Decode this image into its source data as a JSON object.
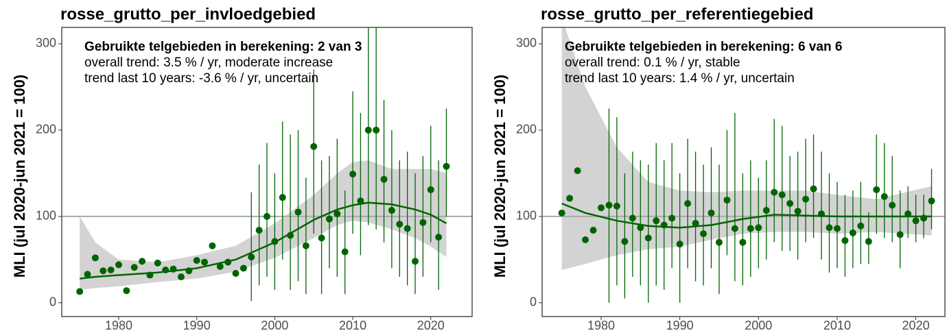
{
  "chart_data": [
    {
      "type": "scatter",
      "title": "rosse_grutto_per_invloedgebied",
      "annotations": [
        "Gebruikte telgebieden in berekening: 2 van 3",
        "overall trend: 3.5 % / yr, moderate increase",
        "trend last 10 years: -3.6 % / yr, uncertain"
      ],
      "y_label": "MLI (jul 2020-jun 2021 = 100)",
      "color": "#006400",
      "band_color": "#d3d3d3",
      "hline": 100,
      "xlim": [
        1972.7,
        2025.3
      ],
      "ylim": [
        -16,
        319
      ],
      "xticks": [
        1980,
        1990,
        2000,
        2010,
        2020
      ],
      "yticks": [
        0,
        100,
        200,
        300
      ],
      "x": [
        1975,
        1976,
        1977,
        1978,
        1979,
        1980,
        1981,
        1982,
        1983,
        1984,
        1985,
        1986,
        1987,
        1988,
        1989,
        1990,
        1991,
        1992,
        1993,
        1994,
        1995,
        1996,
        1997,
        1998,
        1999,
        2000,
        2001,
        2002,
        2003,
        2004,
        2005,
        2006,
        2007,
        2008,
        2009,
        2010,
        2011,
        2012,
        2013,
        2014,
        2015,
        2016,
        2017,
        2018,
        2019,
        2020,
        2021,
        2022
      ],
      "values": [
        13,
        33,
        52,
        37,
        38,
        44,
        14,
        41,
        48,
        32,
        46,
        38,
        39,
        30,
        37,
        49,
        47,
        66,
        42,
        47,
        34,
        40,
        53,
        84,
        100,
        71,
        122,
        78,
        105,
        66,
        181,
        75,
        97,
        103,
        59,
        149,
        118,
        200,
        200,
        143,
        107,
        91,
        86,
        48,
        93,
        131,
        76,
        158
      ],
      "lower": [
        null,
        null,
        null,
        null,
        null,
        null,
        null,
        null,
        null,
        null,
        null,
        null,
        null,
        null,
        null,
        null,
        null,
        null,
        null,
        null,
        null,
        null,
        2,
        20,
        30,
        15,
        50,
        15,
        25,
        10,
        80,
        10,
        40,
        30,
        10,
        80,
        55,
        90,
        85,
        70,
        40,
        30,
        20,
        10,
        30,
        70,
        15,
        100
      ],
      "upper": [
        null,
        null,
        null,
        null,
        null,
        null,
        null,
        null,
        null,
        null,
        null,
        null,
        null,
        null,
        null,
        null,
        null,
        null,
        null,
        null,
        null,
        null,
        128,
        160,
        185,
        150,
        210,
        195,
        200,
        145,
        270,
        165,
        170,
        190,
        130,
        245,
        220,
        320,
        320,
        235,
        200,
        165,
        175,
        150,
        170,
        205,
        165,
        225
      ],
      "fit_x": [
        1975,
        1977,
        1980,
        1985,
        1990,
        1995,
        2000,
        2005,
        2008,
        2010,
        2012,
        2015,
        2018,
        2020,
        2022
      ],
      "fit_values": [
        28,
        30,
        32,
        35,
        40,
        50,
        70,
        96,
        108,
        113,
        116,
        114,
        108,
        102,
        92
      ],
      "fit_lower": [
        15,
        17,
        19,
        24,
        28,
        36,
        52,
        75,
        90,
        95,
        93,
        85,
        75,
        65,
        53
      ],
      "fit_upper": [
        100,
        70,
        50,
        47,
        55,
        66,
        92,
        125,
        150,
        163,
        165,
        155,
        155,
        155,
        150
      ]
    },
    {
      "type": "scatter",
      "title": "rosse_grutto_per_referentiegebied",
      "annotations": [
        "Gebruikte telgebieden in berekening: 6 van 6",
        "overall trend: 0.1 % / yr, stable",
        "trend last 10 years: 1.4 % / yr, uncertain"
      ],
      "y_label": "MLI (jul 2020-jun 2021 = 100)",
      "color": "#006400",
      "band_color": "#d3d3d3",
      "hline": 100,
      "xlim": [
        1972.5,
        2023.7
      ],
      "ylim": [
        -16,
        319
      ],
      "xticks": [
        1980,
        1990,
        2000,
        2010,
        2020
      ],
      "yticks": [
        0,
        100,
        200,
        300
      ],
      "x": [
        1975,
        1976,
        1977,
        1978,
        1979,
        1980,
        1981,
        1982,
        1983,
        1984,
        1985,
        1986,
        1987,
        1988,
        1989,
        1990,
        1991,
        1992,
        1993,
        1994,
        1995,
        1996,
        1997,
        1998,
        1999,
        2000,
        2001,
        2002,
        2003,
        2004,
        2005,
        2006,
        2007,
        2008,
        2009,
        2010,
        2011,
        2012,
        2013,
        2014,
        2015,
        2016,
        2017,
        2018,
        2019,
        2020,
        2021,
        2022
      ],
      "values": [
        104,
        121,
        153,
        73,
        84,
        110,
        113,
        112,
        71,
        98,
        87,
        75,
        95,
        90,
        98,
        68,
        115,
        92,
        80,
        104,
        70,
        119,
        86,
        70,
        86,
        87,
        107,
        128,
        125,
        115,
        106,
        120,
        132,
        103,
        87,
        86,
        72,
        81,
        89,
        71,
        131,
        123,
        113,
        79,
        103,
        95,
        98,
        118
      ],
      "lower": [
        null,
        null,
        null,
        null,
        null,
        null,
        0,
        20,
        5,
        30,
        20,
        0,
        20,
        15,
        40,
        0,
        40,
        25,
        20,
        40,
        10,
        55,
        25,
        20,
        30,
        40,
        50,
        70,
        60,
        60,
        50,
        70,
        75,
        50,
        35,
        40,
        30,
        40,
        45,
        45,
        80,
        75,
        70,
        40,
        75,
        70,
        75,
        85
      ],
      "upper": [
        null,
        null,
        null,
        null,
        null,
        null,
        225,
        215,
        150,
        175,
        165,
        160,
        185,
        165,
        185,
        150,
        190,
        175,
        160,
        180,
        160,
        200,
        220,
        150,
        165,
        145,
        165,
        213,
        205,
        170,
        175,
        190,
        195,
        175,
        150,
        140,
        125,
        130,
        140,
        105,
        195,
        185,
        170,
        130,
        135,
        125,
        125,
        155
      ],
      "fit_x": [
        1975,
        1978,
        1982,
        1986,
        1990,
        1994,
        1998,
        2002,
        2006,
        2010,
        2015,
        2022
      ],
      "fit_values": [
        115,
        104,
        95,
        89,
        87,
        90,
        97,
        102,
        101,
        100,
        100,
        100
      ],
      "fit_lower": [
        38,
        45,
        55,
        62,
        65,
        73,
        80,
        82,
        82,
        80,
        82,
        78
      ],
      "fit_upper": [
        330,
        250,
        180,
        140,
        130,
        128,
        130,
        130,
        130,
        125,
        120,
        135
      ]
    }
  ]
}
